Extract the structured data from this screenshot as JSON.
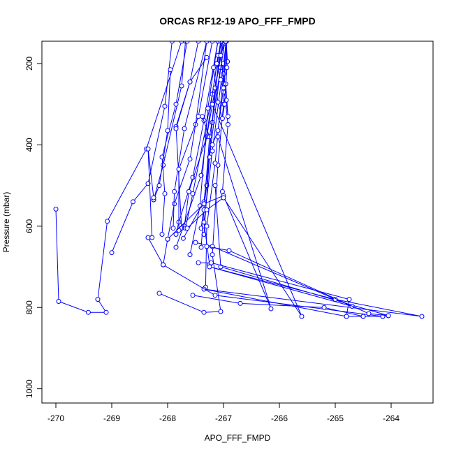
{
  "chart_data": {
    "type": "line",
    "title": "ORCAS RF12-19 APO_FFF_FMPD",
    "xlabel": "APO_FFF_FMPD",
    "ylabel": "Pressure (mbar)",
    "xlim": [
      -270.25,
      -263.25
    ],
    "ylim": [
      1035,
      145
    ],
    "y_reversed": true,
    "grid": false,
    "legend": "none",
    "line_color": "#0000ff",
    "marker": "open-circle",
    "x_ticks": [
      -270,
      -269,
      -268,
      -267,
      -266,
      -265,
      -264
    ],
    "x_tick_labels": [
      "-270",
      "-269",
      "-268",
      "-267",
      "-266",
      "-265",
      "-264"
    ],
    "y_ticks": [
      200,
      400,
      600,
      800,
      1000
    ],
    "y_tick_labels": [
      "200",
      "400",
      "600",
      "800",
      "1000"
    ],
    "series": [
      {
        "points": [
          [
            -270.0,
            558
          ],
          [
            -269.95,
            785
          ],
          [
            -269.42,
            812
          ],
          [
            -269.1,
            812
          ],
          [
            -269.25,
            780
          ],
          [
            -269.08,
            588
          ],
          [
            -268.38,
            410
          ],
          [
            -267.75,
            145
          ]
        ]
      },
      {
        "points": [
          [
            -269.0,
            665
          ],
          [
            -268.62,
            540
          ],
          [
            -268.35,
            495
          ],
          [
            -268.05,
            305
          ],
          [
            -267.92,
            145
          ]
        ]
      },
      {
        "points": [
          [
            -268.25,
            535
          ],
          [
            -268.08,
            450
          ],
          [
            -267.75,
            255
          ],
          [
            -267.68,
            145
          ]
        ]
      },
      {
        "points": [
          [
            -268.35,
            628
          ],
          [
            -268.08,
            695
          ],
          [
            -268.0,
            632
          ],
          [
            -267.88,
            545
          ],
          [
            -267.6,
            435
          ],
          [
            -267.5,
            350
          ],
          [
            -267.3,
            145
          ]
        ]
      },
      {
        "points": [
          [
            -268.15,
            765
          ],
          [
            -267.35,
            812
          ],
          [
            -267.05,
            810
          ],
          [
            -267.2,
            670
          ],
          [
            -267.1,
            450
          ],
          [
            -267.0,
            300
          ],
          [
            -266.95,
            145
          ]
        ]
      },
      {
        "points": [
          [
            -268.1,
            620
          ],
          [
            -268.05,
            520
          ],
          [
            -268.1,
            430
          ],
          [
            -267.85,
            300
          ],
          [
            -267.65,
            145
          ]
        ]
      },
      {
        "points": [
          [
            -267.9,
            605
          ],
          [
            -267.88,
            515
          ],
          [
            -267.7,
            360
          ],
          [
            -267.3,
            145
          ]
        ]
      },
      {
        "points": [
          [
            -267.85,
            620
          ],
          [
            -267.8,
            590
          ],
          [
            -267.55,
            480
          ],
          [
            -267.35,
            340
          ],
          [
            -267.1,
            145
          ]
        ]
      },
      {
        "points": [
          [
            -267.75,
            605
          ],
          [
            -267.85,
            355
          ],
          [
            -267.6,
            245
          ],
          [
            -267.45,
            145
          ]
        ]
      },
      {
        "points": [
          [
            -267.8,
            610
          ],
          [
            -267.8,
            460
          ],
          [
            -267.45,
            330
          ],
          [
            -267.2,
            145
          ]
        ]
      },
      {
        "points": [
          [
            -267.7,
            600
          ],
          [
            -267.62,
            515
          ],
          [
            -267.3,
            380
          ],
          [
            -267.0,
            145
          ]
        ]
      },
      {
        "points": [
          [
            -267.68,
            605
          ],
          [
            -267.55,
            520
          ],
          [
            -267.2,
            275
          ],
          [
            -267.05,
            145
          ]
        ]
      },
      {
        "points": [
          [
            -267.95,
            215
          ],
          [
            -268.0,
            365
          ],
          [
            -268.15,
            500
          ],
          [
            -268.25,
            535
          ]
        ]
      },
      {
        "points": [
          [
            -267.85,
            652
          ],
          [
            -267.4,
            475
          ],
          [
            -267.1,
            180
          ],
          [
            -267.02,
            145
          ]
        ]
      },
      {
        "points": [
          [
            -267.6,
            670
          ],
          [
            -267.42,
            550
          ],
          [
            -267.28,
            310
          ],
          [
            -267.1,
            145
          ]
        ]
      },
      {
        "points": [
          [
            -267.72,
            630
          ],
          [
            -267.35,
            540
          ],
          [
            -267.2,
            345
          ],
          [
            -267.05,
            145
          ]
        ]
      },
      {
        "points": [
          [
            -267.4,
            605
          ],
          [
            -267.3,
            500
          ],
          [
            -267.15,
            260
          ],
          [
            -267.02,
            145
          ]
        ]
      },
      {
        "points": [
          [
            -267.35,
            620
          ],
          [
            -267.25,
            430
          ],
          [
            -267.05,
            210
          ],
          [
            -266.98,
            145
          ]
        ]
      },
      {
        "points": [
          [
            -267.4,
            652
          ],
          [
            -267.35,
            560
          ],
          [
            -267.25,
            380
          ],
          [
            -266.98,
            150
          ]
        ]
      },
      {
        "points": [
          [
            -268.28,
            628
          ],
          [
            -268.35,
            410
          ],
          [
            -268.25,
            530
          ]
        ]
      },
      {
        "points": [
          [
            -267.25,
            695
          ],
          [
            -267.35,
            590
          ],
          [
            -267.2,
            415
          ],
          [
            -267.0,
            200
          ],
          [
            -266.95,
            145
          ]
        ]
      },
      {
        "points": [
          [
            -267.32,
            750
          ],
          [
            -267.3,
            600
          ],
          [
            -267.15,
            445
          ],
          [
            -267.0,
            225
          ],
          [
            -266.95,
            145
          ]
        ]
      },
      {
        "points": [
          [
            -267.02,
            515
          ],
          [
            -266.92,
            350
          ],
          [
            -267.05,
            180
          ],
          [
            -266.97,
            145
          ]
        ]
      },
      {
        "points": [
          [
            -267.3,
            185
          ],
          [
            -267.6,
            245
          ],
          [
            -267.85,
            360
          ]
        ]
      },
      {
        "points": [
          [
            -267.12,
            200
          ],
          [
            -267.05,
            240
          ],
          [
            -267.0,
            270
          ],
          [
            -266.95,
            290
          ],
          [
            -266.92,
            330
          ],
          [
            -266.96,
            250
          ],
          [
            -266.93,
            195
          ],
          [
            -266.95,
            145
          ]
        ]
      },
      {
        "points": [
          [
            -267.18,
            210
          ],
          [
            -267.1,
            295
          ],
          [
            -267.02,
            335
          ],
          [
            -266.98,
            300
          ],
          [
            -266.94,
            210
          ],
          [
            -266.95,
            145
          ]
        ]
      },
      {
        "points": [
          [
            -267.38,
            330
          ],
          [
            -267.2,
            400
          ],
          [
            -267.1,
            365
          ],
          [
            -267.0,
            260
          ],
          [
            -266.96,
            145
          ]
        ]
      },
      {
        "points": [
          [
            -268.0,
            632
          ],
          [
            -267.35,
            545
          ],
          [
            -267.0,
            525
          ],
          [
            -266.15,
            803
          ],
          [
            -267.1,
            380
          ]
        ]
      },
      {
        "points": [
          [
            -267.65,
            605
          ],
          [
            -267.3,
            560
          ],
          [
            -267.0,
            530
          ],
          [
            -265.6,
            822
          ],
          [
            -267.2,
            300
          ]
        ]
      },
      {
        "points": [
          [
            -267.5,
            640
          ],
          [
            -267.2,
            650
          ],
          [
            -264.7,
            797
          ],
          [
            -267.25,
            700
          ],
          [
            -265.0,
            780
          ],
          [
            -263.45,
            822
          ],
          [
            -267.35,
            755
          ],
          [
            -264.8,
            822
          ],
          [
            -264.5,
            822
          ],
          [
            -264.15,
            822
          ],
          [
            -264.05,
            820
          ],
          [
            -267.05,
            700
          ],
          [
            -267.15,
            500
          ]
        ]
      },
      {
        "points": [
          [
            -268.08,
            695
          ],
          [
            -267.15,
            770
          ],
          [
            -264.15,
            822
          ]
        ]
      },
      {
        "points": [
          [
            -267.3,
            650
          ],
          [
            -266.9,
            660
          ],
          [
            -264.4,
            815
          ],
          [
            -264.05,
            820
          ]
        ]
      },
      {
        "points": [
          [
            -267.45,
            690
          ],
          [
            -267.22,
            690
          ],
          [
            -264.75,
            780
          ],
          [
            -264.8,
            822
          ]
        ]
      },
      {
        "points": [
          [
            -267.55,
            770
          ],
          [
            -266.7,
            790
          ],
          [
            -265.2,
            800
          ],
          [
            -264.5,
            822
          ]
        ]
      }
    ]
  }
}
